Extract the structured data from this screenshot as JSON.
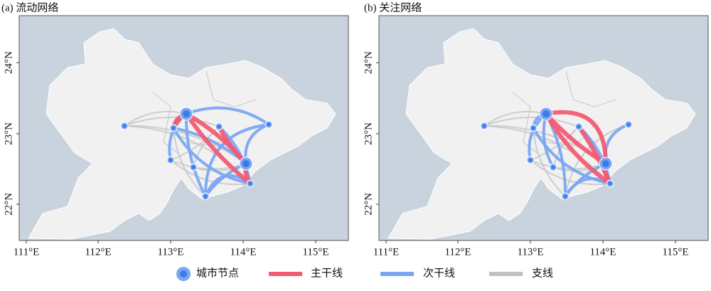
{
  "panels": [
    {
      "title": "(a) 流动网络",
      "x_ticks": [
        "111°E",
        "112°E",
        "113°E",
        "114°E",
        "115°E"
      ],
      "y_ticks": [
        "24°N",
        "23°N",
        "22°N"
      ]
    },
    {
      "title": "(b) 关注网络",
      "x_ticks": [
        "111°E",
        "112°E",
        "113°E",
        "114°E",
        "115°E"
      ],
      "y_ticks": [
        "24°N",
        "23°N",
        "22°N"
      ]
    }
  ],
  "legend": [
    "城市节点",
    "主干线",
    "次干线",
    "支线"
  ]
}
